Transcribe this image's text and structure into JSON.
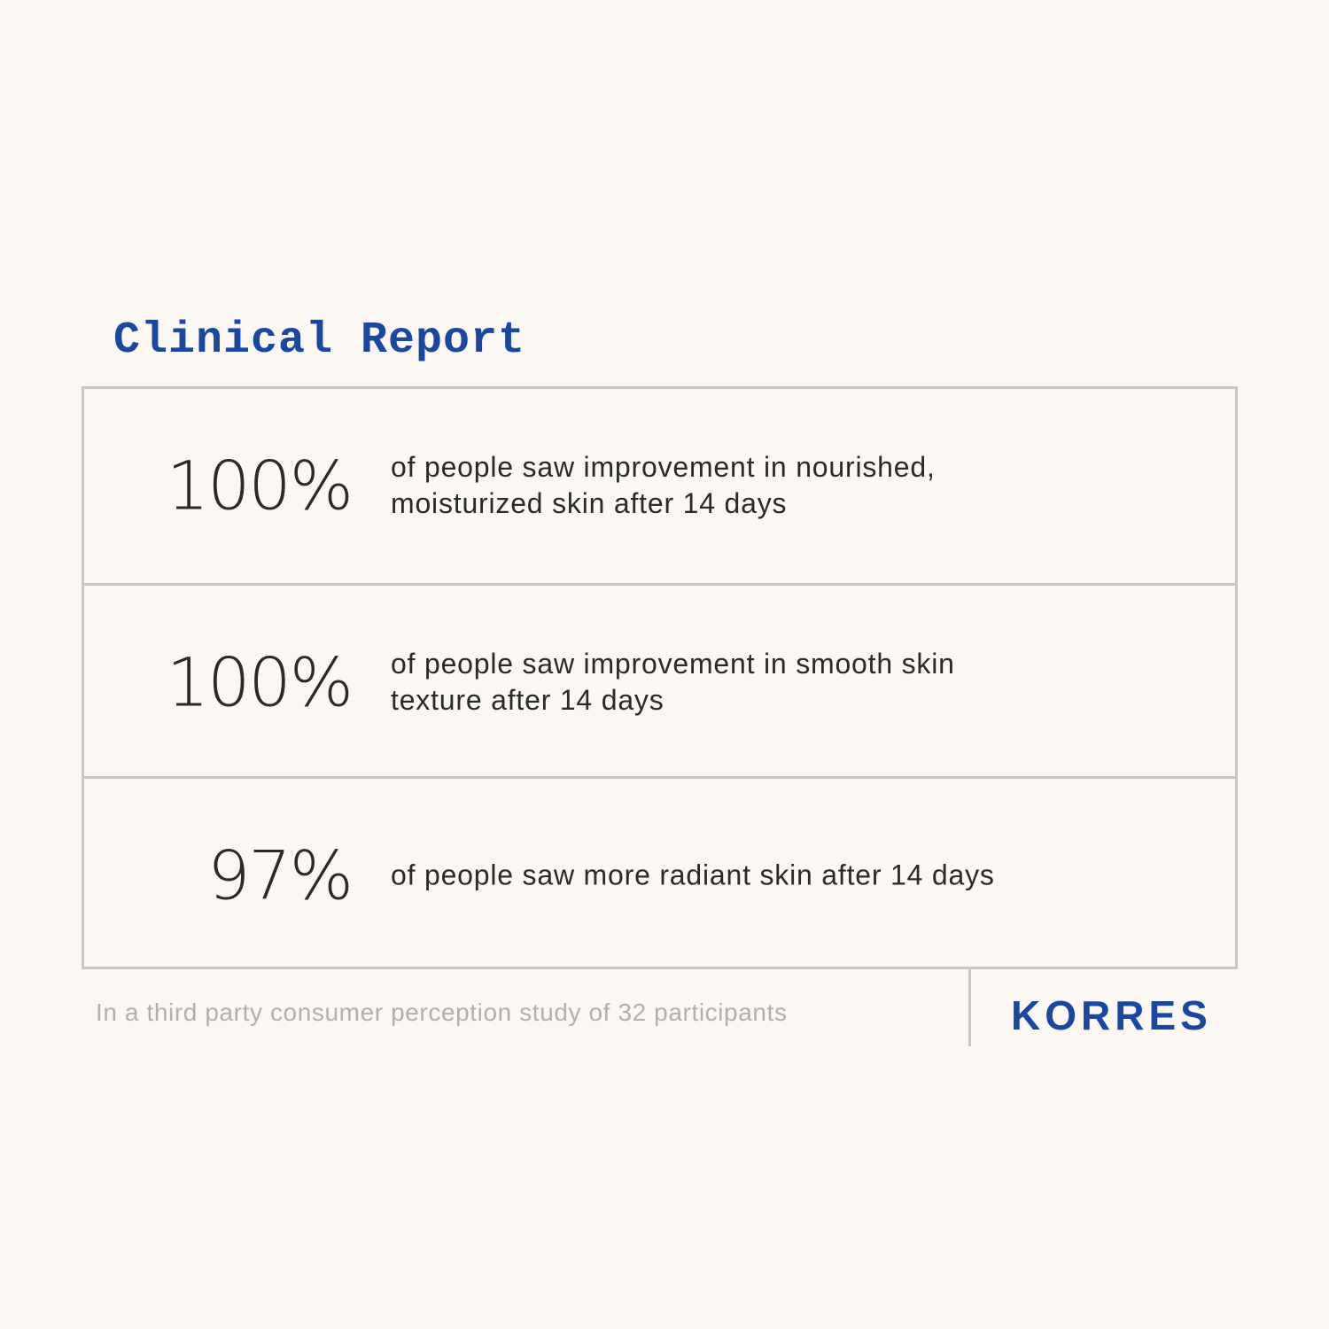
{
  "title": "Clinical Report",
  "stats": [
    {
      "value": "100%",
      "text": "of people saw improvement in nourished,\nmoisturized skin after 14 days"
    },
    {
      "value": "100%",
      "text": "of people saw improvement in smooth skin\ntexture after 14 days"
    },
    {
      "value": "97%",
      "text": "of people saw more radiant skin after 14 days"
    }
  ],
  "footnote": "In a third party consumer perception study of 32 participants",
  "brand": "KORRES",
  "colors": {
    "accent": "#1a47a0",
    "text": "#2a2a2a",
    "border": "#c9c6c1",
    "background": "#fbf7f3"
  }
}
